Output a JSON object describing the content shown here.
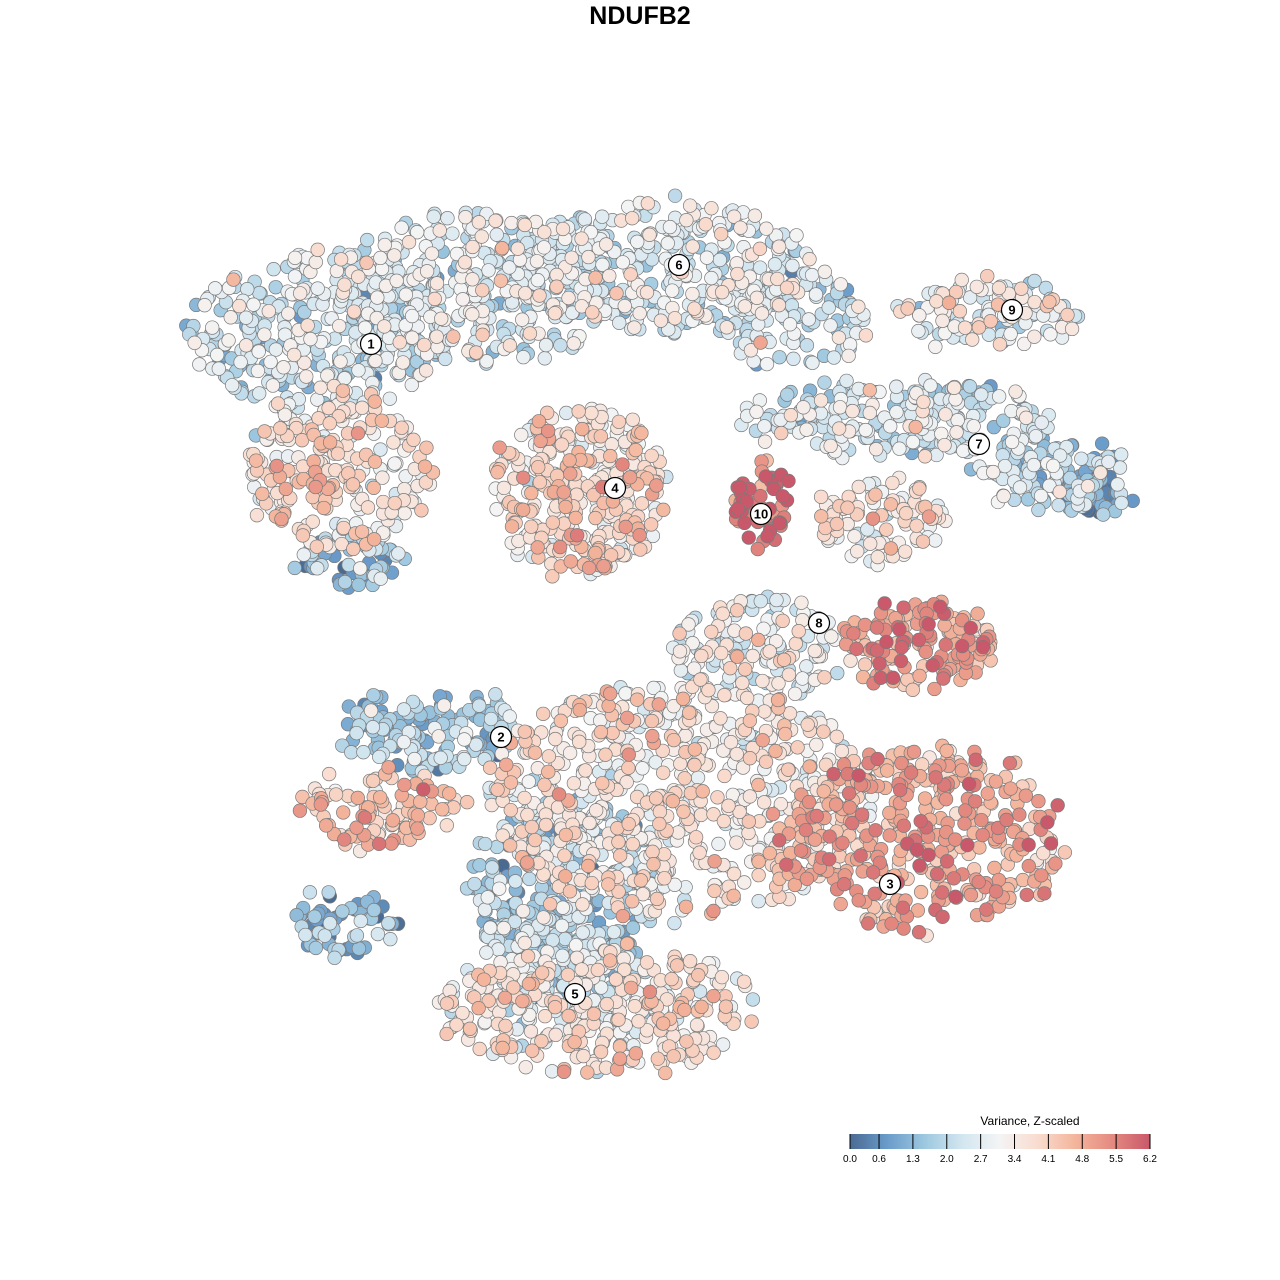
{
  "chart_data": {
    "type": "scatter",
    "title": "NDUFB2",
    "xlabel": "",
    "ylabel": "",
    "xlim": [
      -48,
      48
    ],
    "ylim": [
      -48,
      48
    ],
    "grid": false,
    "point_generation": "seeded random samples around each group center (t-SNE units)",
    "groups": [
      {
        "cx": -32,
        "cy": 31,
        "sx": 10,
        "sy": 6,
        "n": 330,
        "mean": 2.3
      },
      {
        "cx": -16,
        "cy": 35,
        "sx": 11,
        "sy": 6,
        "n": 380,
        "mean": 2.6
      },
      {
        "cx": 2,
        "cy": 37,
        "sx": 12,
        "sy": 5,
        "n": 330,
        "mean": 2.6
      },
      {
        "cx": 15,
        "cy": 32,
        "sx": 6,
        "sy": 4,
        "n": 110,
        "mean": 2.4
      },
      {
        "cx": -30,
        "cy": 17,
        "sx": 7,
        "sy": 6,
        "n": 240,
        "mean": 3.7
      },
      {
        "cx": -29,
        "cy": 8,
        "sx": 4,
        "sy": 2,
        "n": 60,
        "mean": 1.4
      },
      {
        "cx": -6,
        "cy": 15,
        "sx": 6.5,
        "sy": 6.5,
        "n": 330,
        "mean": 3.7
      },
      {
        "cx": 12,
        "cy": 13.5,
        "sx": 2.2,
        "sy": 3.5,
        "n": 60,
        "mean": 6.0
      },
      {
        "cx": 26,
        "cy": 22,
        "sx": 12,
        "sy": 3,
        "n": 240,
        "mean": 2.5
      },
      {
        "cx": 41,
        "cy": 17,
        "sx": 6,
        "sy": 3,
        "n": 120,
        "mean": 2.1
      },
      {
        "cx": 45.5,
        "cy": 14.5,
        "sx": 2.5,
        "sy": 1.5,
        "n": 40,
        "mean": 0.8
      },
      {
        "cx": 35,
        "cy": 32.5,
        "sx": 7,
        "sy": 2.5,
        "n": 120,
        "mean": 2.9
      },
      {
        "cx": 24,
        "cy": 12,
        "sx": 5,
        "sy": 3,
        "n": 100,
        "mean": 3.3
      },
      {
        "cx": 28,
        "cy": -0.5,
        "sx": 6,
        "sy": 3.5,
        "n": 150,
        "mean": 5.0
      },
      {
        "cx": 12,
        "cy": -1,
        "sx": 7,
        "sy": 4,
        "n": 150,
        "mean": 3.1
      },
      {
        "cx": -21,
        "cy": -9,
        "sx": 7,
        "sy": 3,
        "n": 150,
        "mean": 1.7
      },
      {
        "cx": -26,
        "cy": -17,
        "sx": 6,
        "sy": 3,
        "n": 100,
        "mean": 4.3
      },
      {
        "cx": -30,
        "cy": -28.5,
        "sx": 4,
        "sy": 2.5,
        "n": 60,
        "mean": 1.2
      },
      {
        "cx": 4,
        "cy": -16,
        "sx": 15,
        "sy": 9,
        "n": 650,
        "mean": 3.5
      },
      {
        "cx": -7,
        "cy": -24,
        "sx": 8,
        "sy": 6,
        "n": 250,
        "mean": 1.8
      },
      {
        "cx": 28,
        "cy": -20,
        "sx": 11,
        "sy": 7,
        "n": 400,
        "mean": 4.8
      },
      {
        "cx": -4,
        "cy": -37,
        "sx": 12,
        "sy": 5,
        "n": 380,
        "mean": 3.4
      },
      {
        "cx": -8,
        "cy": -31,
        "sx": 6,
        "sy": 4,
        "n": 150,
        "mean": 2.0
      }
    ],
    "cluster_labels": [
      {
        "label": "1",
        "x": -26.9,
        "y": 29.6
      },
      {
        "label": "2",
        "x": -13.9,
        "y": -9.7
      },
      {
        "label": "3",
        "x": 25.0,
        "y": -24.4
      },
      {
        "label": "4",
        "x": -2.5,
        "y": 15.2
      },
      {
        "label": "5",
        "x": -6.5,
        "y": -35.4
      },
      {
        "label": "6",
        "x": 3.9,
        "y": 37.5
      },
      {
        "label": "7",
        "x": 33.9,
        "y": 19.6
      },
      {
        "label": "8",
        "x": 17.9,
        "y": 1.7
      },
      {
        "label": "9",
        "x": 37.2,
        "y": 33.0
      },
      {
        "label": "10",
        "x": 12.1,
        "y": 12.6
      }
    ],
    "legend": {
      "title": "Variance, Z-scaled",
      "position": "bottom-right",
      "ticks": [
        "0.0",
        "0.6",
        "1.3",
        "2.0",
        "2.7",
        "3.4",
        "4.1",
        "4.8",
        "5.5",
        "6.2"
      ],
      "range": [
        0,
        6.2
      ],
      "colors": [
        "#4a6a92",
        "#6a9ccb",
        "#9ec8e0",
        "#d3e6f0",
        "#f4f4f4",
        "#f9dccf",
        "#f4b59c",
        "#e48a80",
        "#c9586a"
      ]
    }
  }
}
